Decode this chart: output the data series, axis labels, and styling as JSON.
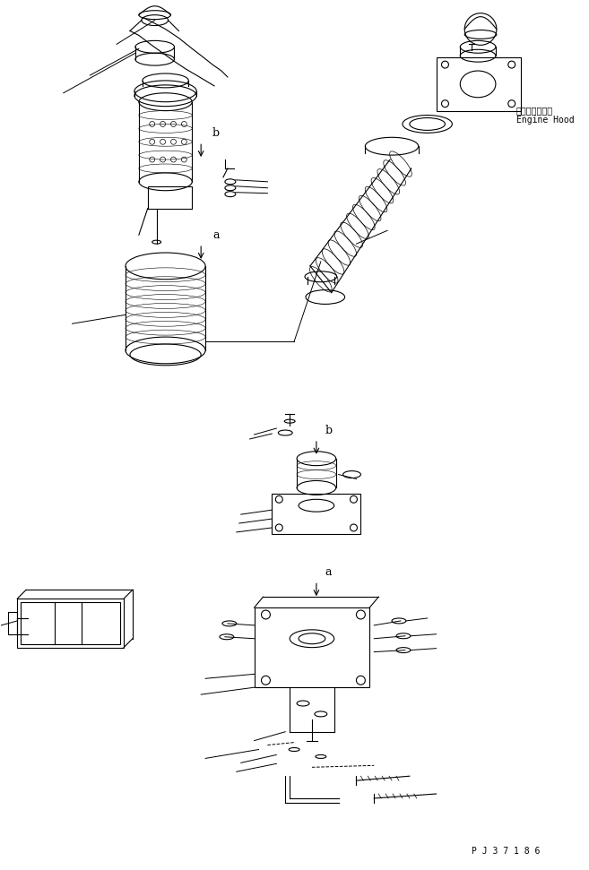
{
  "bg_color": "#ffffff",
  "line_color": "#000000",
  "text_color": "#000000",
  "figsize": [
    6.57,
    9.71
  ],
  "dpi": 100,
  "part_code": "P J 3 7 1 8 6",
  "label_b1": "b",
  "label_a1": "a",
  "label_b2": "b",
  "label_a2": "a",
  "engine_hood_jp": "エンジンフード",
  "engine_hood_en": "Engine Hood"
}
